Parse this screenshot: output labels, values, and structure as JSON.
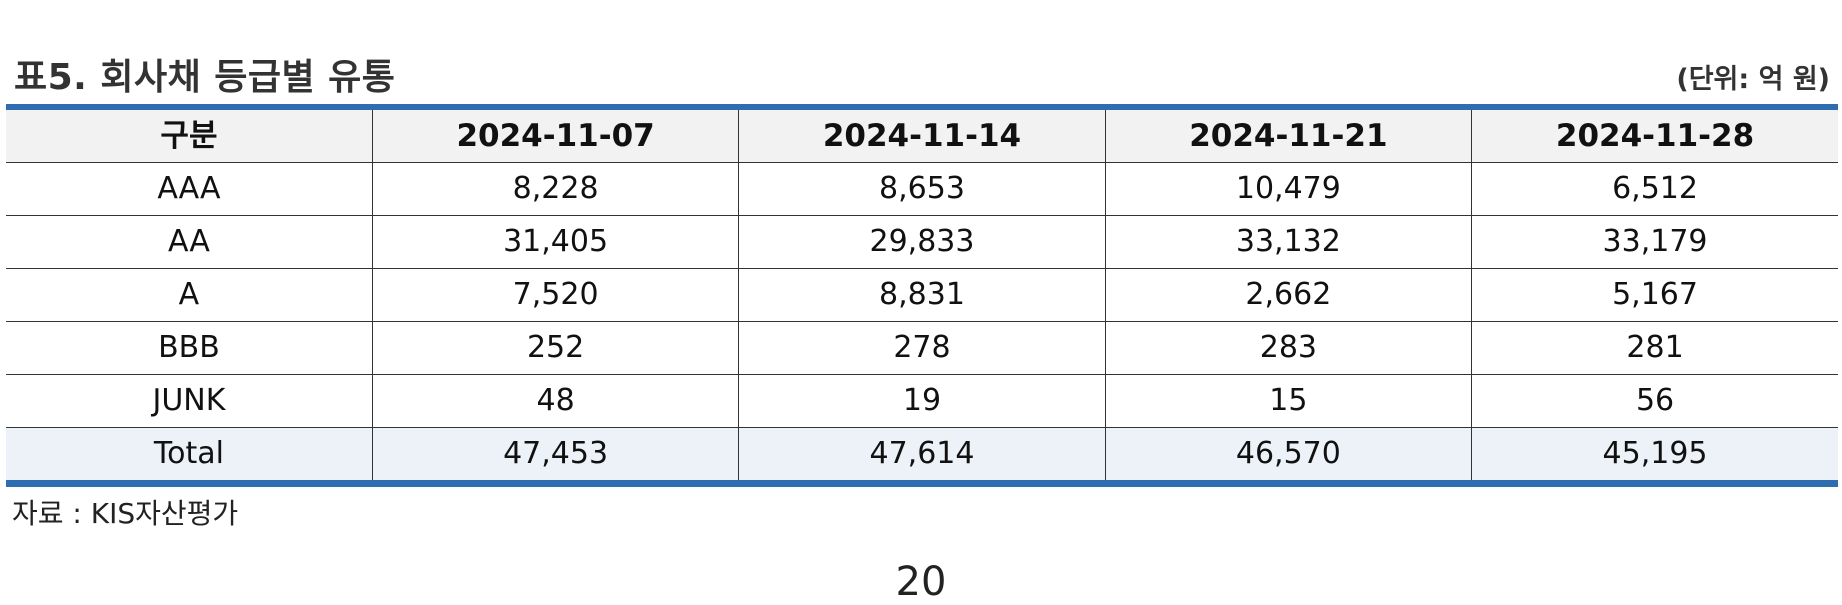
{
  "header": {
    "title": "표5. 회사채 등급별 유통",
    "unit": "(단위: 억 원)"
  },
  "table": {
    "columns": [
      "구분",
      "2024-11-07",
      "2024-11-14",
      "2024-11-21",
      "2024-11-28"
    ],
    "rows": [
      [
        "AAA",
        "8,228",
        "8,653",
        "10,479",
        "6,512"
      ],
      [
        "AA",
        "31,405",
        "29,833",
        "33,132",
        "33,179"
      ],
      [
        "A",
        "7,520",
        "8,831",
        "2,662",
        "5,167"
      ],
      [
        "BBB",
        "252",
        "278",
        "283",
        "281"
      ],
      [
        "JUNK",
        "48",
        "19",
        "15",
        "56"
      ],
      [
        "Total",
        "47,453",
        "47,614",
        "46,570",
        "45,195"
      ]
    ]
  },
  "footer": {
    "source": "자료 : KIS자산평가",
    "page_number": "20"
  },
  "colors": {
    "accent_border": "#2e6db0",
    "header_bg": "#f2f2f2",
    "total_bg": "#edf2f8"
  }
}
